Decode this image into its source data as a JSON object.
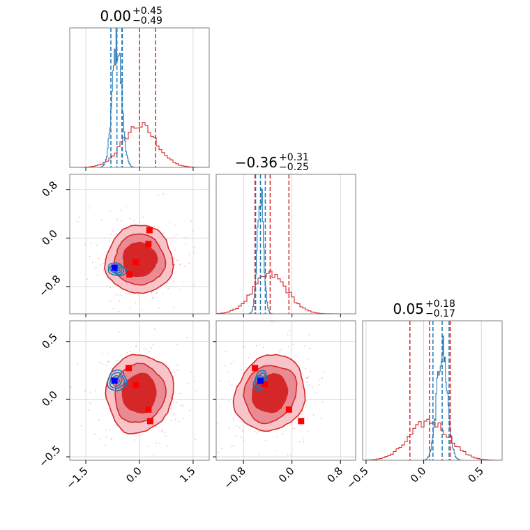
{
  "colors": {
    "red": "#d62728",
    "blue": "#1f77b4",
    "grid": "#cfcfcf",
    "axis": "#7f7f7f",
    "marker_red": "#ff0000",
    "marker_blue": "#0000ff"
  },
  "chart_data": {
    "type": "corner",
    "grid": true,
    "parameters": [
      {
        "range": [
          -1.95,
          1.95
        ],
        "ticks": [
          -1.5,
          0.0,
          1.5
        ],
        "tick_labels": [
          "−1.5",
          "0.0",
          "1.5"
        ],
        "title_value": "0.00",
        "title_plus": "+0.45",
        "title_minus": "−0.49",
        "red_quantiles": [
          -0.49,
          0.0,
          0.45
        ],
        "blue_quantiles": [
          -0.8,
          -0.63,
          -0.48
        ]
      },
      {
        "range": [
          -1.25,
          1.05
        ],
        "ticks": [
          -0.8,
          0.0,
          0.8
        ],
        "tick_labels": [
          "−0.8",
          "0.0",
          "0.8"
        ],
        "title_value": "−0.36",
        "title_plus": "+0.31",
        "title_minus": "−0.25",
        "red_quantiles": [
          -0.61,
          -0.36,
          -0.05
        ],
        "blue_quantiles": [
          -0.6,
          -0.52,
          -0.44
        ]
      },
      {
        "range": [
          -0.53,
          0.68
        ],
        "ticks": [
          -0.5,
          0.0,
          0.5
        ],
        "tick_labels": [
          "−0.5",
          "0.0",
          "0.5"
        ],
        "title_value": "0.05",
        "title_plus": "+0.18",
        "title_minus": "−0.17",
        "red_quantiles": [
          -0.12,
          0.05,
          0.23
        ],
        "blue_quantiles": [
          0.08,
          0.16,
          0.22
        ]
      }
    ],
    "histograms": [
      {
        "param": 0,
        "red": {
          "mean": 0.0,
          "sd": 0.47,
          "peak": 0.3
        },
        "blue": {
          "mean": -0.63,
          "sd": 0.13,
          "peak": 0.9
        }
      },
      {
        "param": 1,
        "red": {
          "mean": -0.36,
          "sd": 0.28,
          "peak": 0.28
        },
        "blue": {
          "mean": -0.52,
          "sd": 0.05,
          "peak": 0.9
        }
      },
      {
        "param": 2,
        "red": {
          "mean": 0.05,
          "sd": 0.17,
          "peak": 0.28
        },
        "blue": {
          "mean": 0.16,
          "sd": 0.045,
          "peak": 0.8
        }
      }
    ],
    "scatter_panels": [
      {
        "x_param": 0,
        "y_param": 1,
        "red_markers": [
          [
            0.28,
            0.13
          ],
          [
            0.25,
            -0.1
          ],
          [
            -0.1,
            -0.4
          ],
          [
            -0.28,
            -0.6
          ]
        ],
        "blue_marker": [
          -0.7,
          -0.49
        ]
      },
      {
        "x_param": 0,
        "y_param": 2,
        "red_markers": [
          [
            -0.3,
            0.27
          ],
          [
            -0.1,
            0.12
          ],
          [
            0.25,
            -0.09
          ],
          [
            0.3,
            -0.19
          ]
        ],
        "blue_marker": [
          -0.7,
          0.16
        ]
      },
      {
        "x_param": 1,
        "y_param": 2,
        "red_markers": [
          [
            -0.61,
            0.27
          ],
          [
            -0.45,
            0.13
          ],
          [
            -0.05,
            -0.09
          ],
          [
            0.15,
            -0.19
          ]
        ],
        "blue_marker": [
          -0.52,
          0.16
        ]
      }
    ],
    "contours": {
      "red": {
        "cx": 0.0,
        "cy_from_mean": true,
        "levels": [
          1.0,
          1.5,
          2.0
        ]
      },
      "blue": {
        "levels": [
          0.5,
          1.0,
          1.5,
          2.0
        ]
      }
    }
  }
}
